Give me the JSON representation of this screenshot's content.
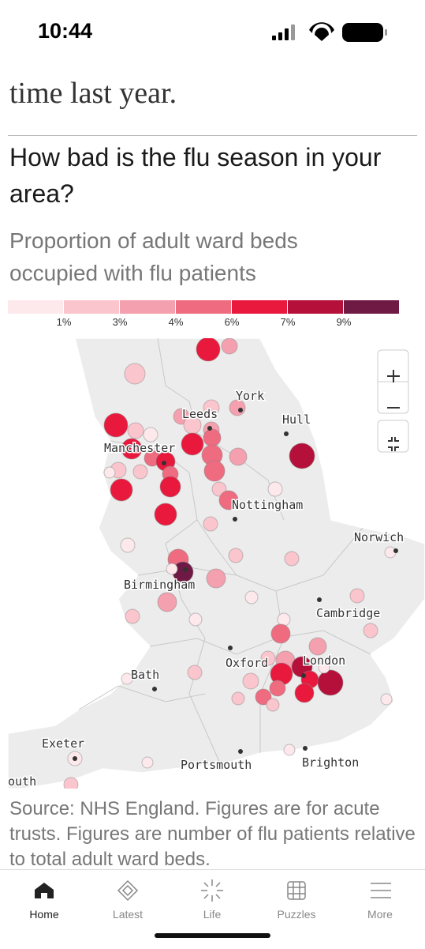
{
  "status_bar": {
    "time": "10:44"
  },
  "article": {
    "previous_text": "time last year.",
    "heading": "How bad is the flu season in your area?",
    "subheading": "Proportion of adult ward beds occupied with flu patients"
  },
  "legend": {
    "colors": [
      "#fde9ec",
      "#fbc5cd",
      "#f4a0ae",
      "#ee6b80",
      "#e8193d",
      "#b5103a",
      "#6e1a45"
    ],
    "labels": [
      "1%",
      "3%",
      "4%",
      "6%",
      "7%",
      "9%"
    ]
  },
  "map": {
    "places": [
      "York",
      "Hull",
      "Leeds",
      "Manchester",
      "Nottingham",
      "Norwich",
      "Birmingham",
      "Cambridge",
      "Oxford",
      "London",
      "Bath",
      "Exeter",
      "Portsmouth",
      "Brighton",
      "outh"
    ]
  },
  "source": "Source: NHS England. Figures are for acute trusts. Figures are number of flu patients relative to total adult ward beds.",
  "nav": [
    "Home",
    "Latest",
    "Life",
    "Puzzles",
    "More"
  ]
}
